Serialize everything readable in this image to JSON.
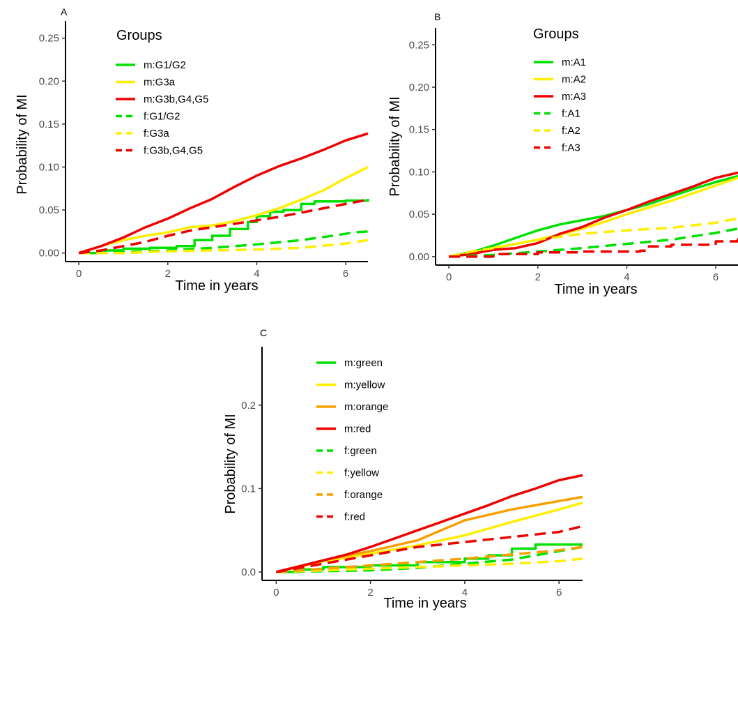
{
  "chart_data": [
    {
      "panel": "A",
      "type": "line",
      "xlabel": "Time in years",
      "ylabel": "Probability of MI",
      "xlim": [
        -0.3,
        6.5
      ],
      "ylim": [
        -0.01,
        0.27
      ],
      "xticks": [
        0,
        2,
        4,
        6
      ],
      "xtick_labels": [
        "0",
        "2",
        "4",
        "6"
      ],
      "yticks": [
        0,
        0.05,
        0.1,
        0.15,
        0.2,
        0.25
      ],
      "ytick_labels": [
        "0.00",
        "0.05",
        "0.10",
        "0.15",
        "0.20",
        "0.25"
      ],
      "grid": false,
      "legend_title": "Groups",
      "legend_position": "top-left",
      "series": [
        {
          "name": "m:G1/G2",
          "color": "#00e000",
          "dash": false,
          "step": true,
          "x": [
            0,
            0.5,
            1.0,
            1.6,
            2.2,
            2.6,
            3.0,
            3.4,
            3.8,
            4.0,
            4.3,
            4.6,
            5.0,
            5.3,
            6.0,
            6.5
          ],
          "y": [
            0,
            0.003,
            0.005,
            0.006,
            0.008,
            0.015,
            0.02,
            0.028,
            0.036,
            0.043,
            0.048,
            0.05,
            0.057,
            0.06,
            0.061,
            0.063
          ]
        },
        {
          "name": "m:G3a",
          "color": "#ffee00",
          "dash": false,
          "step": false,
          "x": [
            0,
            0.5,
            1.0,
            1.5,
            2.0,
            2.5,
            3.0,
            3.5,
            4.0,
            4.5,
            5.0,
            5.5,
            6.0,
            6.5
          ],
          "y": [
            0,
            0.008,
            0.015,
            0.02,
            0.024,
            0.03,
            0.032,
            0.037,
            0.044,
            0.052,
            0.062,
            0.073,
            0.087,
            0.1
          ]
        },
        {
          "name": "m:G3b,G4,G5",
          "color": "#ee0000",
          "dash": false,
          "step": false,
          "x": [
            0,
            0.5,
            1.0,
            1.5,
            2.0,
            2.5,
            3.0,
            3.5,
            4.0,
            4.5,
            5.0,
            5.5,
            6.0,
            6.5
          ],
          "y": [
            0,
            0.008,
            0.018,
            0.03,
            0.04,
            0.052,
            0.063,
            0.077,
            0.09,
            0.101,
            0.11,
            0.12,
            0.131,
            0.139
          ]
        },
        {
          "name": "f:G1/G2",
          "color": "#00e000",
          "dash": true,
          "step": false,
          "x": [
            0,
            0.5,
            1.0,
            2.0,
            3.0,
            4.0,
            5.0,
            5.7,
            6.2,
            6.5
          ],
          "y": [
            0,
            0.0,
            0.001,
            0.003,
            0.006,
            0.01,
            0.015,
            0.02,
            0.024,
            0.025
          ]
        },
        {
          "name": "f:G3a",
          "color": "#ffee00",
          "dash": true,
          "step": false,
          "x": [
            0,
            1.0,
            2.0,
            3.0,
            4.0,
            5.0,
            6.0,
            6.5
          ],
          "y": [
            0,
            0.0,
            0.002,
            0.003,
            0.004,
            0.006,
            0.011,
            0.015
          ]
        },
        {
          "name": "f:G3b,G4,G5",
          "color": "#ee0000",
          "dash": true,
          "step": false,
          "x": [
            0,
            0.5,
            1.0,
            1.5,
            2.0,
            2.5,
            3.0,
            3.5,
            4.0,
            4.5,
            5.0,
            5.5,
            6.0,
            6.5
          ],
          "y": [
            0,
            0.003,
            0.008,
            0.013,
            0.02,
            0.026,
            0.03,
            0.034,
            0.038,
            0.042,
            0.047,
            0.052,
            0.057,
            0.062
          ]
        }
      ]
    },
    {
      "panel": "B",
      "type": "line",
      "xlabel": "Time in years",
      "ylabel": "Probability of MI",
      "xlim": [
        -0.3,
        6.5
      ],
      "ylim": [
        -0.01,
        0.27
      ],
      "xticks": [
        0,
        2,
        4,
        6
      ],
      "xtick_labels": [
        "0",
        "2",
        "4",
        "6"
      ],
      "yticks": [
        0,
        0.05,
        0.1,
        0.15,
        0.2,
        0.25
      ],
      "ytick_labels": [
        "0.00",
        "0.05",
        "0.10",
        "0.15",
        "0.20",
        "0.25"
      ],
      "grid": false,
      "legend_title": "Groups",
      "legend_position": "top-center",
      "series": [
        {
          "name": "m:A1",
          "color": "#00e000",
          "dash": false,
          "step": false,
          "x": [
            0,
            0.5,
            1.0,
            1.5,
            2.0,
            2.5,
            3.0,
            3.5,
            4.0,
            4.5,
            5.0,
            5.5,
            6.0,
            6.5
          ],
          "y": [
            0,
            0.005,
            0.013,
            0.022,
            0.031,
            0.038,
            0.043,
            0.048,
            0.055,
            0.062,
            0.071,
            0.08,
            0.088,
            0.095
          ]
        },
        {
          "name": "m:A2",
          "color": "#ffee00",
          "dash": false,
          "step": false,
          "x": [
            0,
            0.5,
            1.0,
            1.5,
            2.0,
            2.5,
            3.0,
            3.5,
            4.0,
            4.5,
            5.0,
            5.5,
            6.0,
            6.5
          ],
          "y": [
            0,
            0.004,
            0.01,
            0.015,
            0.02,
            0.026,
            0.033,
            0.041,
            0.05,
            0.058,
            0.066,
            0.075,
            0.084,
            0.093
          ]
        },
        {
          "name": "m:A3",
          "color": "#ee0000",
          "dash": false,
          "step": false,
          "x": [
            0,
            0.5,
            1.0,
            1.5,
            2.0,
            2.5,
            3.0,
            3.5,
            4.0,
            4.5,
            5.0,
            5.5,
            6.0,
            6.5
          ],
          "y": [
            0,
            0.003,
            0.008,
            0.01,
            0.016,
            0.027,
            0.035,
            0.046,
            0.055,
            0.065,
            0.074,
            0.083,
            0.093,
            0.099
          ]
        },
        {
          "name": "f:A1",
          "color": "#00e000",
          "dash": true,
          "step": false,
          "x": [
            0,
            1.0,
            2.0,
            3.0,
            4.0,
            5.0,
            5.5,
            6.0,
            6.5
          ],
          "y": [
            0,
            0.002,
            0.006,
            0.01,
            0.015,
            0.02,
            0.024,
            0.028,
            0.033
          ]
        },
        {
          "name": "f:A2",
          "color": "#ffee00",
          "dash": true,
          "step": false,
          "x": [
            0,
            0.5,
            1.0,
            2.0,
            3.0,
            4.0,
            5.0,
            6.0,
            6.5
          ],
          "y": [
            0,
            0.006,
            0.01,
            0.02,
            0.027,
            0.031,
            0.034,
            0.04,
            0.045
          ]
        },
        {
          "name": "f:A3",
          "color": "#ee0000",
          "dash": true,
          "step": true,
          "x": [
            0,
            1.0,
            2.0,
            3.0,
            4.3,
            4.5,
            5.0,
            6.0,
            6.5
          ],
          "y": [
            0,
            0.003,
            0.005,
            0.006,
            0.007,
            0.012,
            0.014,
            0.018,
            0.022
          ]
        }
      ]
    },
    {
      "panel": "C",
      "type": "line",
      "xlabel": "Time in years",
      "ylabel": "Probability of MI",
      "xlim": [
        -0.3,
        6.5
      ],
      "ylim": [
        -0.01,
        0.27
      ],
      "xticks": [
        0,
        2,
        4,
        6
      ],
      "xtick_labels": [
        "0",
        "2",
        "4",
        "6"
      ],
      "yticks": [
        0,
        0.1,
        0.2
      ],
      "ytick_labels": [
        "0.0",
        "0.1",
        "0.2"
      ],
      "grid": false,
      "legend_title": "",
      "legend_position": "top-center",
      "series": [
        {
          "name": "m:green",
          "color": "#00e000",
          "dash": false,
          "step": true,
          "x": [
            0,
            0.5,
            1.0,
            2.0,
            3.0,
            4.0,
            4.5,
            5.0,
            5.5,
            6.5
          ],
          "y": [
            0,
            0.003,
            0.006,
            0.008,
            0.012,
            0.016,
            0.02,
            0.028,
            0.033,
            0.033
          ]
        },
        {
          "name": "m:yellow",
          "color": "#ffee00",
          "dash": false,
          "step": false,
          "x": [
            0,
            0.5,
            1.0,
            2.0,
            3.0,
            4.0,
            5.0,
            6.0,
            6.5
          ],
          "y": [
            0,
            0.006,
            0.013,
            0.022,
            0.032,
            0.044,
            0.06,
            0.075,
            0.083
          ]
        },
        {
          "name": "m:orange",
          "color": "#f5a000",
          "dash": false,
          "step": false,
          "x": [
            0,
            0.5,
            1.0,
            2.0,
            3.0,
            3.5,
            4.0,
            5.0,
            6.0,
            6.5
          ],
          "y": [
            0,
            0.007,
            0.014,
            0.025,
            0.038,
            0.05,
            0.062,
            0.075,
            0.085,
            0.09
          ]
        },
        {
          "name": "m:red",
          "color": "#ee0000",
          "dash": false,
          "step": false,
          "x": [
            0,
            0.5,
            1.0,
            1.5,
            2.0,
            2.5,
            3.0,
            3.5,
            4.0,
            4.5,
            5.0,
            5.5,
            6.0,
            6.5
          ],
          "y": [
            0,
            0.007,
            0.014,
            0.021,
            0.03,
            0.04,
            0.05,
            0.06,
            0.07,
            0.08,
            0.091,
            0.1,
            0.11,
            0.116
          ]
        },
        {
          "name": "f:green",
          "color": "#00e000",
          "dash": true,
          "step": false,
          "x": [
            0,
            1.0,
            2.0,
            3.0,
            4.0,
            5.0,
            6.0,
            6.5
          ],
          "y": [
            0,
            0.001,
            0.002,
            0.005,
            0.01,
            0.015,
            0.025,
            0.03
          ]
        },
        {
          "name": "f:yellow",
          "color": "#ffee00",
          "dash": true,
          "step": false,
          "x": [
            0,
            1.0,
            2.0,
            3.0,
            4.0,
            5.0,
            6.0,
            6.5
          ],
          "y": [
            0,
            0.002,
            0.004,
            0.006,
            0.008,
            0.01,
            0.013,
            0.016
          ]
        },
        {
          "name": "f:orange",
          "color": "#f5a000",
          "dash": true,
          "step": false,
          "x": [
            0,
            1.0,
            2.0,
            3.0,
            4.0,
            5.0,
            6.0,
            6.5
          ],
          "y": [
            0,
            0.004,
            0.008,
            0.012,
            0.016,
            0.021,
            0.026,
            0.03
          ]
        },
        {
          "name": "f:red",
          "color": "#ee0000",
          "dash": true,
          "step": false,
          "x": [
            0,
            1.0,
            2.0,
            3.0,
            4.0,
            5.0,
            6.0,
            6.5
          ],
          "y": [
            0,
            0.01,
            0.02,
            0.03,
            0.036,
            0.042,
            0.048,
            0.055
          ]
        }
      ]
    }
  ]
}
